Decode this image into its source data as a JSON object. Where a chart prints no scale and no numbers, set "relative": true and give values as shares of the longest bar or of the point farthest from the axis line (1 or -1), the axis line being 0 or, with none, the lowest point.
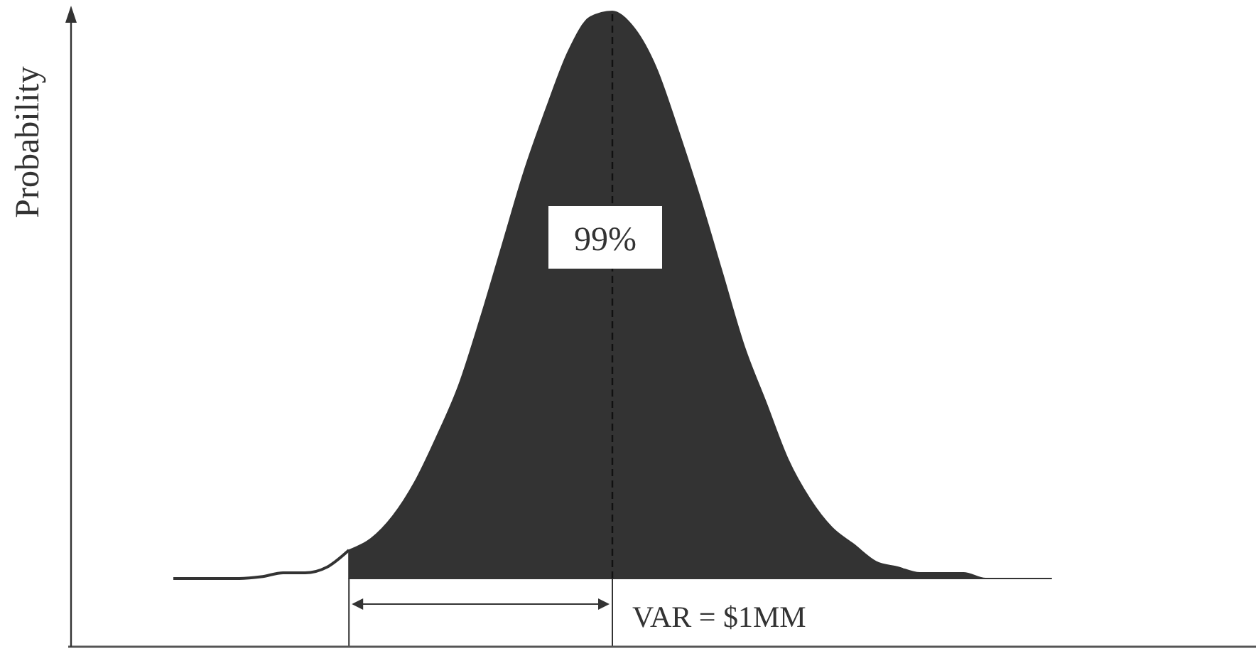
{
  "chart_data": {
    "type": "area",
    "relative": true,
    "ylabel": "Probability",
    "categories": [
      null,
      null,
      null,
      null,
      null,
      null,
      null,
      null,
      null,
      null,
      null,
      null,
      null,
      null,
      null,
      null,
      null,
      null,
      null,
      null,
      null,
      null,
      null,
      null,
      null,
      null,
      null,
      null,
      null,
      null,
      null,
      null,
      null,
      null,
      null,
      null,
      null,
      null,
      null,
      null,
      null
    ],
    "series": [
      {
        "type": "line",
        "color": "#333333",
        "values": [
          0,
          0,
          0,
          0,
          0.003,
          0.01,
          0.01,
          0.02,
          0.05,
          null,
          null,
          null,
          null,
          null,
          null,
          null,
          null,
          null,
          null,
          null,
          null,
          null,
          null,
          null,
          null,
          null,
          null,
          null,
          null,
          null,
          null,
          null,
          null,
          null,
          null,
          null,
          null,
          null,
          null,
          null,
          null
        ]
      },
      {
        "color": "#333333",
        "values": [
          null,
          null,
          null,
          null,
          null,
          null,
          null,
          null,
          0.05,
          0.07,
          0.11,
          0.17,
          0.25,
          0.34,
          0.46,
          0.59,
          0.72,
          0.83,
          0.93,
          0.99,
          1,
          0.97,
          0.9,
          0.79,
          0.67,
          0.54,
          0.41,
          0.31,
          0.21,
          0.14,
          0.09,
          0.06,
          0.03,
          0.02,
          0.01,
          0.01,
          0.01,
          0,
          0,
          0,
          0
        ]
      }
    ],
    "annotations": [
      "99%",
      "VAR = $1MM"
    ]
  }
}
